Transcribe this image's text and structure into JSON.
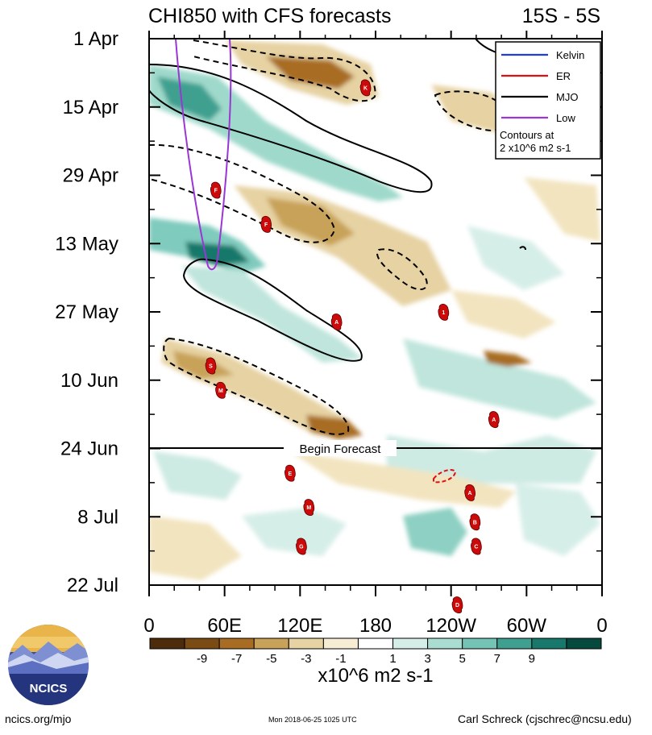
{
  "chart_data": {
    "type": "heatmap",
    "title": "CHI850 with CFS forecasts",
    "region": "15S - 5S",
    "x_ticks": [
      "0",
      "60E",
      "120E",
      "180",
      "120W",
      "60W",
      "0"
    ],
    "y_ticks": [
      "1 Apr",
      "15 Apr",
      "29 Apr",
      "13 May",
      "27 May",
      "10 Jun",
      "24 Jun",
      "8 Jul",
      "22 Jul"
    ],
    "forecast_label": "Begin Forecast",
    "legend": {
      "items": [
        {
          "name": "Kelvin",
          "color": "#1f3fd8"
        },
        {
          "name": "ER",
          "color": "#e01010"
        },
        {
          "name": "MJO",
          "color": "#000000"
        },
        {
          "name": "Low",
          "color": "#9a36d6"
        }
      ],
      "note_line1": "Contours at",
      "note_line2": "2 x10^6 m2 s-1"
    },
    "colorbar": {
      "levels": [
        "-9",
        "-7",
        "-5",
        "-3",
        "-1",
        "1",
        "3",
        "5",
        "7",
        "9"
      ],
      "colors": [
        "#4d2c0b",
        "#7a4c13",
        "#a86d22",
        "#c8a258",
        "#e6d2a2",
        "#f6edd4",
        "#ffffff",
        "#d6eee8",
        "#a9ddd1",
        "#75c3b5",
        "#3fa090",
        "#17786b",
        "#064a3f"
      ],
      "units": "x10^6 m2 s-1"
    },
    "cyclones": [
      {
        "label": "K",
        "lon": 172,
        "day": 10
      },
      {
        "label": "F",
        "lon": 53,
        "day": 31
      },
      {
        "label": "F",
        "lon": 93,
        "day": 38
      },
      {
        "label": "1",
        "lon": 234,
        "day": 56
      },
      {
        "label": "A",
        "lon": 149,
        "day": 58
      },
      {
        "label": "S",
        "lon": 49,
        "day": 67
      },
      {
        "label": "M",
        "lon": 57,
        "day": 72
      },
      {
        "label": "A",
        "lon": 274,
        "day": 78
      },
      {
        "label": "E",
        "lon": 112,
        "day": 89
      },
      {
        "label": "A",
        "lon": 255,
        "day": 93
      },
      {
        "label": "M",
        "lon": 127,
        "day": 96
      },
      {
        "label": "B",
        "lon": 259,
        "day": 99
      },
      {
        "label": "G",
        "lon": 121,
        "day": 104
      },
      {
        "label": "C",
        "lon": 260,
        "day": 104
      },
      {
        "label": "D",
        "lon": 245,
        "day": 116
      }
    ]
  },
  "footer": {
    "left": "ncics.org/mjo",
    "center": "Mon 2018-06-25 1025 UTC",
    "right": "Carl Schreck (cjschrec@ncsu.edu)"
  },
  "logo": {
    "text": "NCICS"
  }
}
